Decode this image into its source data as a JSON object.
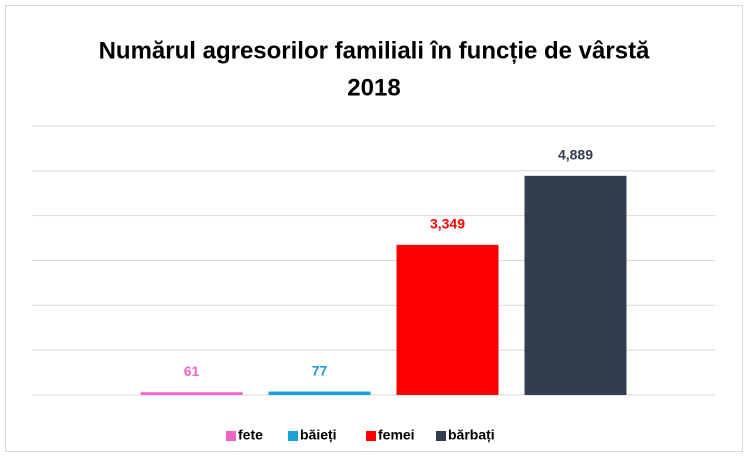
{
  "chart_data": {
    "type": "bar",
    "title": [
      "Numărul agresorilor familiali în funcție de vârstă",
      "2018"
    ],
    "categories": [
      null
    ],
    "series": [
      {
        "name": "fete",
        "color": "#f064c8",
        "values": [
          61
        ]
      },
      {
        "name": "băieți",
        "color": "#1ba1d9",
        "values": [
          77
        ]
      },
      {
        "name": "femei",
        "color": "#ff0000",
        "values": [
          3349
        ],
        "value_labels": [
          "3,349"
        ]
      },
      {
        "name": "bărbați",
        "color": "#323e4f",
        "values": [
          4889
        ],
        "value_labels": [
          "4,889"
        ]
      }
    ],
    "ylim": [
      0,
      6000
    ],
    "yticks": [
      0,
      1000,
      2000,
      3000,
      4000,
      5000,
      6000
    ],
    "grid": true,
    "legend": "bottom"
  }
}
